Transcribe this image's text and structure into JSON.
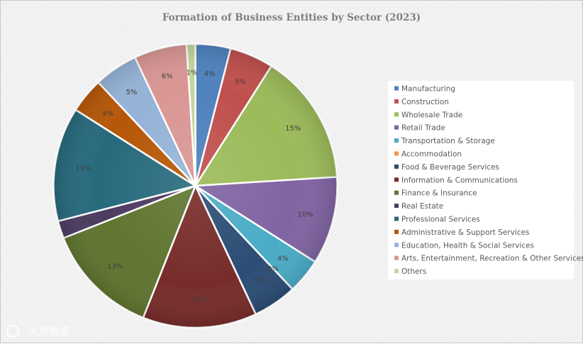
{
  "chart_data": {
    "type": "pie",
    "title": "Formation of Business Entities by Sector (2023)",
    "categories": [
      "Manufacturing",
      "Construction",
      "Wholesale Trade",
      "Retail Trade",
      "Transportation & Storage",
      " Accommodation",
      "Food & Beverage Services",
      "Information & Communications",
      "Finance & Insurance",
      " Real Estate",
      "Professional Services",
      "Administrative & Support Services",
      "Education, Health & Social Services",
      "Arts, Entertainment, Recreation & Other Services",
      "Others"
    ],
    "values": [
      4,
      5,
      15,
      10,
      4,
      0,
      5,
      13,
      13,
      2,
      13,
      4,
      5,
      6,
      1
    ],
    "value_labels": [
      "4%",
      "5%",
      "15%",
      "10%",
      "4%",
      "0%",
      "5%",
      "13%",
      "13%",
      "2%",
      "13%",
      "4%",
      "5%",
      "6%",
      "1%"
    ],
    "colors": [
      "#4F81BD",
      "#C0504D",
      "#9BBB59",
      "#8064A2",
      "#4BACC6",
      "#F79646",
      "#2C4D75",
      "#772C2A",
      "#5F7530",
      "#4D3B62",
      "#276A7C",
      "#B65708",
      "#95B3D7",
      "#D99694",
      "#C3D69B"
    ],
    "start_angle_deg": 0,
    "direction": "clockwise",
    "legend_position": "right"
  },
  "watermark": {
    "text": "大数跨境"
  }
}
